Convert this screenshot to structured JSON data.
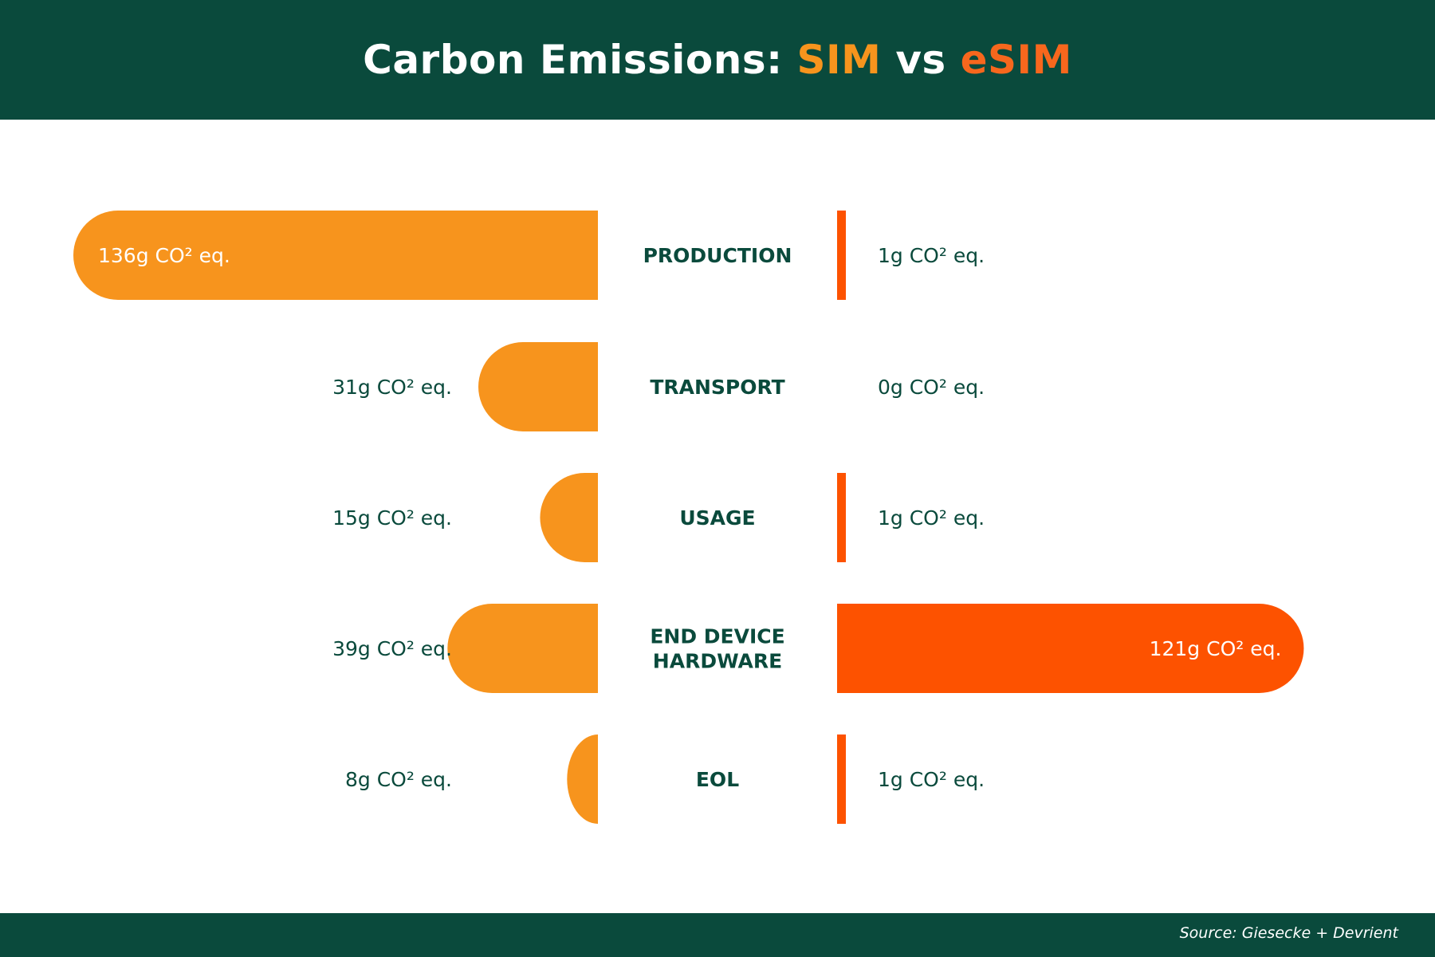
{
  "header": {
    "title_prefix": "Carbon Emissions: ",
    "title_sim": "SIM",
    "title_vs": " vs ",
    "title_esim": "eSIM"
  },
  "footer": {
    "source": "Source: Giesecke + Devrient"
  },
  "colors": {
    "background_dark": "#0a4a3c",
    "sim": "#f7941d",
    "esim": "#fd5200",
    "text_dark": "#0a4a3c",
    "text_light": "#ffffff"
  },
  "chart_data": {
    "type": "bar",
    "title": "Carbon Emissions: SIM vs eSIM",
    "layout": "diverging-horizontal",
    "categories": [
      [
        "PRODUCTION"
      ],
      [
        "TRANSPORT"
      ],
      [
        "USAGE"
      ],
      [
        "END DEVICE",
        "HARDWARE"
      ],
      [
        "EOL"
      ]
    ],
    "series": [
      {
        "name": "SIM",
        "direction": "left",
        "values": [
          136,
          31,
          15,
          39,
          8
        ],
        "labels": [
          "136g CO² eq.",
          "31g CO² eq.",
          "15g CO² eq.",
          "39g CO² eq.",
          "8g CO² eq."
        ]
      },
      {
        "name": "eSIM",
        "direction": "right",
        "values": [
          1,
          0,
          1,
          121,
          1
        ],
        "labels": [
          "1g CO² eq.",
          "0g CO² eq.",
          "1g CO² eq.",
          "121g CO² eq.",
          "1g CO² eq."
        ]
      }
    ],
    "unit": "g CO² eq."
  }
}
